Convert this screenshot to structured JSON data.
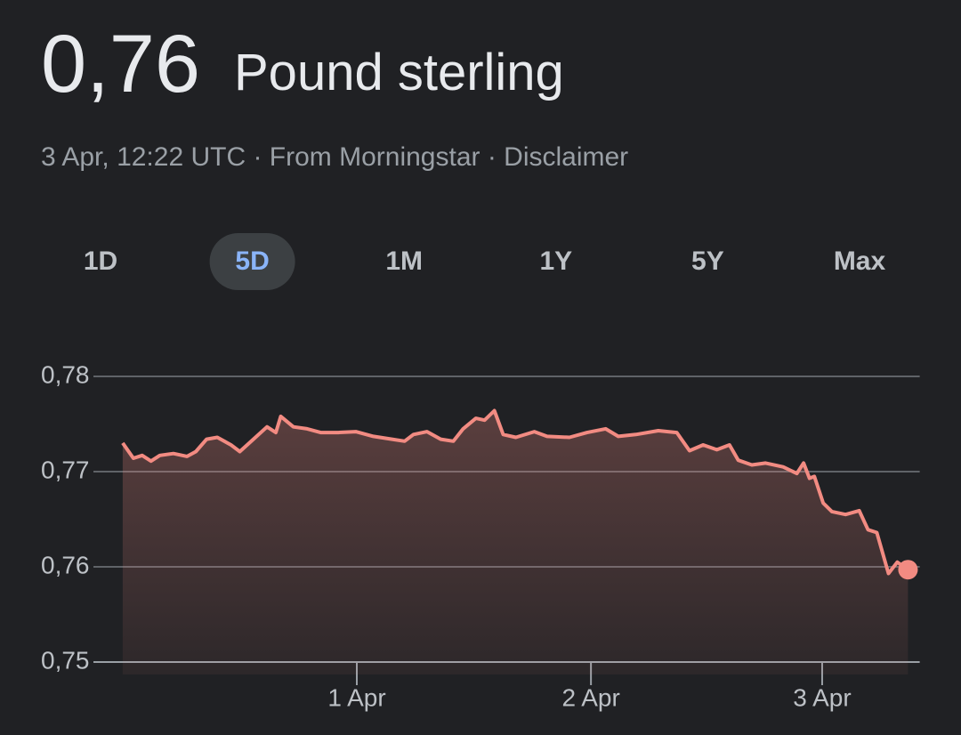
{
  "header": {
    "value": "0,76",
    "currency": "Pound sterling",
    "subtitle": "3 Apr, 12:22 UTC · From Morningstar · Disclaimer"
  },
  "tabs": {
    "items": [
      "1D",
      "5D",
      "1M",
      "1Y",
      "5Y",
      "Max"
    ],
    "selected": 1
  },
  "chart_data": {
    "type": "area",
    "color": "#f28b82",
    "grid": true,
    "x": [
      0,
      1.1,
      2.0,
      2.9,
      3.8,
      5.2,
      6.6,
      7.5,
      8.6,
      9.7,
      11.1,
      12.0,
      13.4,
      14.8,
      15.7,
      16.2,
      17.5,
      18.9,
      20.3,
      22.1,
      23.9,
      25.7,
      27.6,
      28.9,
      29.8,
      31.2,
      32.6,
      33.9,
      34.9,
      36.2,
      37.1,
      38.1,
      39.0,
      40.3,
      42.2,
      43.5,
      45.8,
      47.6,
      49.5,
      50.8,
      52.6,
      54.9,
      56.8,
      58.1,
      59.5,
      60.9,
      62.2,
      63.1,
      64.5,
      65.9,
      67.7,
      69.1,
      69.8,
      70.4,
      70.9,
      71.8,
      72.7,
      74.1,
      75.5,
      76.4,
      77.3,
      78.5,
      79.4,
      80.5
    ],
    "values": [
      0.773,
      0.7714,
      0.7717,
      0.7711,
      0.7717,
      0.7719,
      0.7716,
      0.7721,
      0.7734,
      0.7736,
      0.7728,
      0.7721,
      0.7734,
      0.7747,
      0.7741,
      0.7758,
      0.7747,
      0.7745,
      0.7741,
      0.7741,
      0.7742,
      0.7737,
      0.7734,
      0.7732,
      0.7739,
      0.7742,
      0.7734,
      0.7732,
      0.7745,
      0.7756,
      0.7754,
      0.7764,
      0.7739,
      0.7736,
      0.7742,
      0.7737,
      0.7736,
      0.7741,
      0.7745,
      0.7737,
      0.7739,
      0.7743,
      0.7741,
      0.7722,
      0.7728,
      0.7723,
      0.7728,
      0.7712,
      0.7707,
      0.7709,
      0.7705,
      0.7698,
      0.7709,
      0.7693,
      0.7695,
      0.7667,
      0.7658,
      0.7655,
      0.7659,
      0.7639,
      0.7636,
      0.7593,
      0.7605,
      0.7597
    ],
    "xlim": [
      -3,
      81.7
    ],
    "xticks": [
      {
        "value": 24,
        "label": "1 Apr"
      },
      {
        "value": 48,
        "label": "2 Apr"
      },
      {
        "value": 71.7,
        "label": "3 Apr"
      }
    ],
    "ylim": [
      0.75,
      0.78
    ],
    "yticks": [
      {
        "value": 0.75,
        "label": "0,75"
      },
      {
        "value": 0.76,
        "label": "0,76"
      },
      {
        "value": 0.77,
        "label": "0,77"
      },
      {
        "value": 0.78,
        "label": "0,78"
      }
    ]
  }
}
